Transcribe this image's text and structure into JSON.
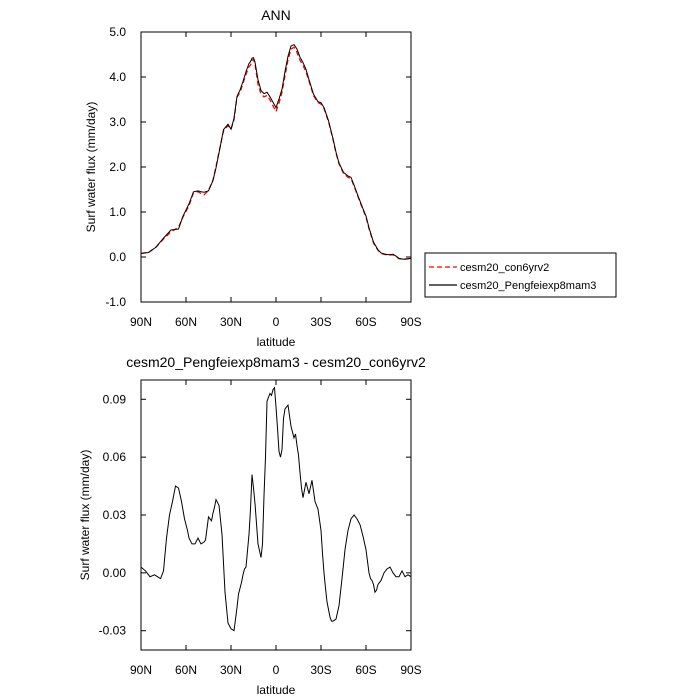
{
  "chart_data": [
    {
      "type": "line",
      "title": "ANN",
      "xlabel": "latitude",
      "ylabel": "Surf water flux (mm/day)",
      "xlim": [
        90,
        -90
      ],
      "ylim": [
        -1.0,
        5.0
      ],
      "x_ticks": [
        90,
        60,
        30,
        0,
        -30,
        -60,
        -90
      ],
      "x_tick_labels": [
        "90N",
        "60N",
        "30N",
        "0",
        "30S",
        "60S",
        "90S"
      ],
      "y_ticks": [
        -1.0,
        0.0,
        1.0,
        2.0,
        3.0,
        4.0,
        5.0
      ],
      "y_tick_labels": [
        "-1.0",
        "0.0",
        "1.0",
        "2.0",
        "3.0",
        "4.0",
        "5.0"
      ],
      "legend_position": "outside-right",
      "series": [
        {
          "name": "cesm20_con6yrv2",
          "color": "#ff0000",
          "dash": "dashed",
          "x": [
            90,
            85,
            80,
            75,
            70,
            65,
            62,
            58,
            55,
            52,
            50,
            48,
            45,
            42,
            40,
            37,
            35,
            32,
            30,
            28,
            26,
            24,
            22,
            20,
            18,
            17,
            16,
            15,
            14,
            12,
            10,
            8,
            6,
            4,
            2,
            0,
            -2,
            -4,
            -6,
            -8,
            -10,
            -12,
            -14,
            -16,
            -18,
            -20,
            -22,
            -25,
            -28,
            -30,
            -32,
            -35,
            -38,
            -40,
            -42,
            -45,
            -48,
            -50,
            -52,
            -55,
            -58,
            -60,
            -62,
            -65,
            -68,
            -70,
            -72,
            -75,
            -78,
            -80,
            -82,
            -85,
            -88,
            -90
          ],
          "y": [
            0.08,
            0.1,
            0.22,
            0.4,
            0.56,
            0.66,
            0.89,
            1.14,
            1.43,
            1.45,
            1.41,
            1.38,
            1.48,
            1.71,
            2.01,
            2.49,
            2.8,
            2.92,
            2.84,
            3.05,
            3.55,
            3.66,
            3.86,
            4.06,
            4.23,
            4.26,
            4.37,
            4.39,
            4.28,
            3.84,
            3.62,
            3.56,
            3.59,
            3.49,
            3.36,
            3.23,
            3.42,
            3.66,
            4.03,
            4.38,
            4.62,
            4.66,
            4.55,
            4.37,
            4.26,
            4.11,
            3.91,
            3.59,
            3.43,
            3.4,
            3.3,
            3.01,
            2.61,
            2.31,
            2.07,
            1.86,
            1.77,
            1.74,
            1.58,
            1.31,
            1.05,
            0.89,
            0.63,
            0.31,
            0.15,
            0.08,
            0.06,
            0.04,
            0.05,
            0.01,
            -0.04,
            -0.05,
            -0.04,
            -0.03
          ]
        },
        {
          "name": "cesm20_Pengfeiexp8mam3",
          "color": "#000000",
          "dash": "solid",
          "x": [
            90,
            85,
            80,
            75,
            70,
            65,
            62,
            58,
            55,
            52,
            50,
            48,
            45,
            42,
            40,
            37,
            35,
            32,
            30,
            28,
            26,
            24,
            22,
            20,
            18,
            17,
            16,
            15,
            14,
            12,
            10,
            8,
            6,
            4,
            2,
            0,
            -2,
            -4,
            -6,
            -8,
            -10,
            -12,
            -14,
            -16,
            -18,
            -20,
            -22,
            -25,
            -28,
            -30,
            -32,
            -35,
            -38,
            -40,
            -42,
            -45,
            -48,
            -50,
            -52,
            -55,
            -58,
            -60,
            -62,
            -65,
            -68,
            -70,
            -72,
            -75,
            -78,
            -80,
            -82,
            -85,
            -88,
            -90
          ],
          "y": [
            0.08,
            0.1,
            0.22,
            0.42,
            0.6,
            0.62,
            0.91,
            1.18,
            1.45,
            1.47,
            1.45,
            1.44,
            1.47,
            1.7,
            1.98,
            2.48,
            2.83,
            2.95,
            2.84,
            3.08,
            3.57,
            3.71,
            3.9,
            4.12,
            4.3,
            4.34,
            4.42,
            4.43,
            4.33,
            3.94,
            3.7,
            3.63,
            3.66,
            3.56,
            3.44,
            3.32,
            3.51,
            3.73,
            4.12,
            4.46,
            4.69,
            4.72,
            4.62,
            4.44,
            4.32,
            4.17,
            3.94,
            3.62,
            3.45,
            3.43,
            3.32,
            3.03,
            2.63,
            2.33,
            2.09,
            1.88,
            1.8,
            1.77,
            1.6,
            1.33,
            1.07,
            0.91,
            0.65,
            0.33,
            0.16,
            0.09,
            0.07,
            0.05,
            0.06,
            0.02,
            -0.03,
            -0.05,
            -0.04,
            -0.03
          ]
        }
      ]
    },
    {
      "type": "line",
      "title": "cesm20_Pengfeiexp8mam3 - cesm20_con6yrv2",
      "xlabel": "latitude",
      "ylabel": "Surf water flux (mm/day)",
      "xlim": [
        90,
        -90
      ],
      "ylim": [
        -0.04,
        0.1
      ],
      "x_ticks": [
        90,
        60,
        30,
        0,
        -30,
        -60,
        -90
      ],
      "x_tick_labels": [
        "90N",
        "60N",
        "30N",
        "0",
        "30S",
        "60S",
        "90S"
      ],
      "y_ticks": [
        -0.03,
        0.0,
        0.03,
        0.06,
        0.09
      ],
      "y_tick_labels": [
        "-0.03",
        "0.00",
        "0.03",
        "0.06",
        "0.09"
      ],
      "series": [
        {
          "color": "#000000",
          "dash": "solid",
          "x": [
            90,
            87,
            84,
            81,
            79,
            77,
            75,
            73,
            71,
            69,
            67,
            65,
            63,
            61,
            59,
            58,
            56,
            54,
            52,
            50,
            48,
            47,
            45,
            43,
            42,
            41,
            40,
            38,
            36,
            34,
            32,
            30,
            28,
            26,
            25,
            23,
            22,
            21,
            20,
            18,
            17,
            16,
            15,
            14,
            12,
            10,
            9,
            8,
            7,
            6,
            5,
            4,
            3,
            2,
            1,
            0,
            -1,
            -2,
            -3,
            -4,
            -5,
            -6,
            -8,
            -10,
            -12,
            -13,
            -14,
            -15,
            -16,
            -17,
            -18,
            -20,
            -22,
            -24,
            -26,
            -28,
            -30,
            -31,
            -32,
            -33,
            -34,
            -35,
            -36,
            -37,
            -38,
            -40,
            -42,
            -44,
            -46,
            -48,
            -50,
            -52,
            -54,
            -56,
            -58,
            -60,
            -62,
            -63,
            -64,
            -65,
            -66,
            -67,
            -68,
            -70,
            -72,
            -74,
            -76,
            -78,
            -80,
            -82,
            -84,
            -86,
            -88,
            -90
          ],
          "y": [
            0.003,
            0.001,
            -0.002,
            -0.001,
            -0.002,
            -0.003,
            0.001,
            0.018,
            0.03,
            0.037,
            0.045,
            0.044,
            0.037,
            0.028,
            0.022,
            0.018,
            0.015,
            0.015,
            0.018,
            0.015,
            0.016,
            0.017,
            0.029,
            0.027,
            0.031,
            0.034,
            0.038,
            0.035,
            0.02,
            -0.01,
            -0.026,
            -0.029,
            -0.03,
            -0.018,
            -0.011,
            -0.005,
            -0.001,
            0.002,
            0.003,
            0.02,
            0.033,
            0.051,
            0.044,
            0.036,
            0.015,
            0.008,
            0.015,
            0.04,
            0.06,
            0.089,
            0.091,
            0.093,
            0.092,
            0.095,
            0.096,
            0.086,
            0.075,
            0.063,
            0.06,
            0.064,
            0.08,
            0.085,
            0.087,
            0.076,
            0.07,
            0.072,
            0.066,
            0.061,
            0.052,
            0.044,
            0.039,
            0.047,
            0.041,
            0.048,
            0.037,
            0.033,
            0.022,
            0.01,
            0.0,
            -0.008,
            -0.015,
            -0.019,
            -0.023,
            -0.025,
            -0.025,
            -0.024,
            -0.017,
            -0.003,
            0.012,
            0.022,
            0.028,
            0.03,
            0.028,
            0.025,
            0.019,
            0.012,
            0.0,
            -0.003,
            -0.004,
            -0.006,
            -0.01,
            -0.009,
            -0.006,
            -0.004,
            0.0,
            0.002,
            0.003,
            0.0,
            -0.002,
            -0.002,
            0.001,
            -0.002,
            -0.001,
            -0.002
          ]
        }
      ]
    }
  ]
}
